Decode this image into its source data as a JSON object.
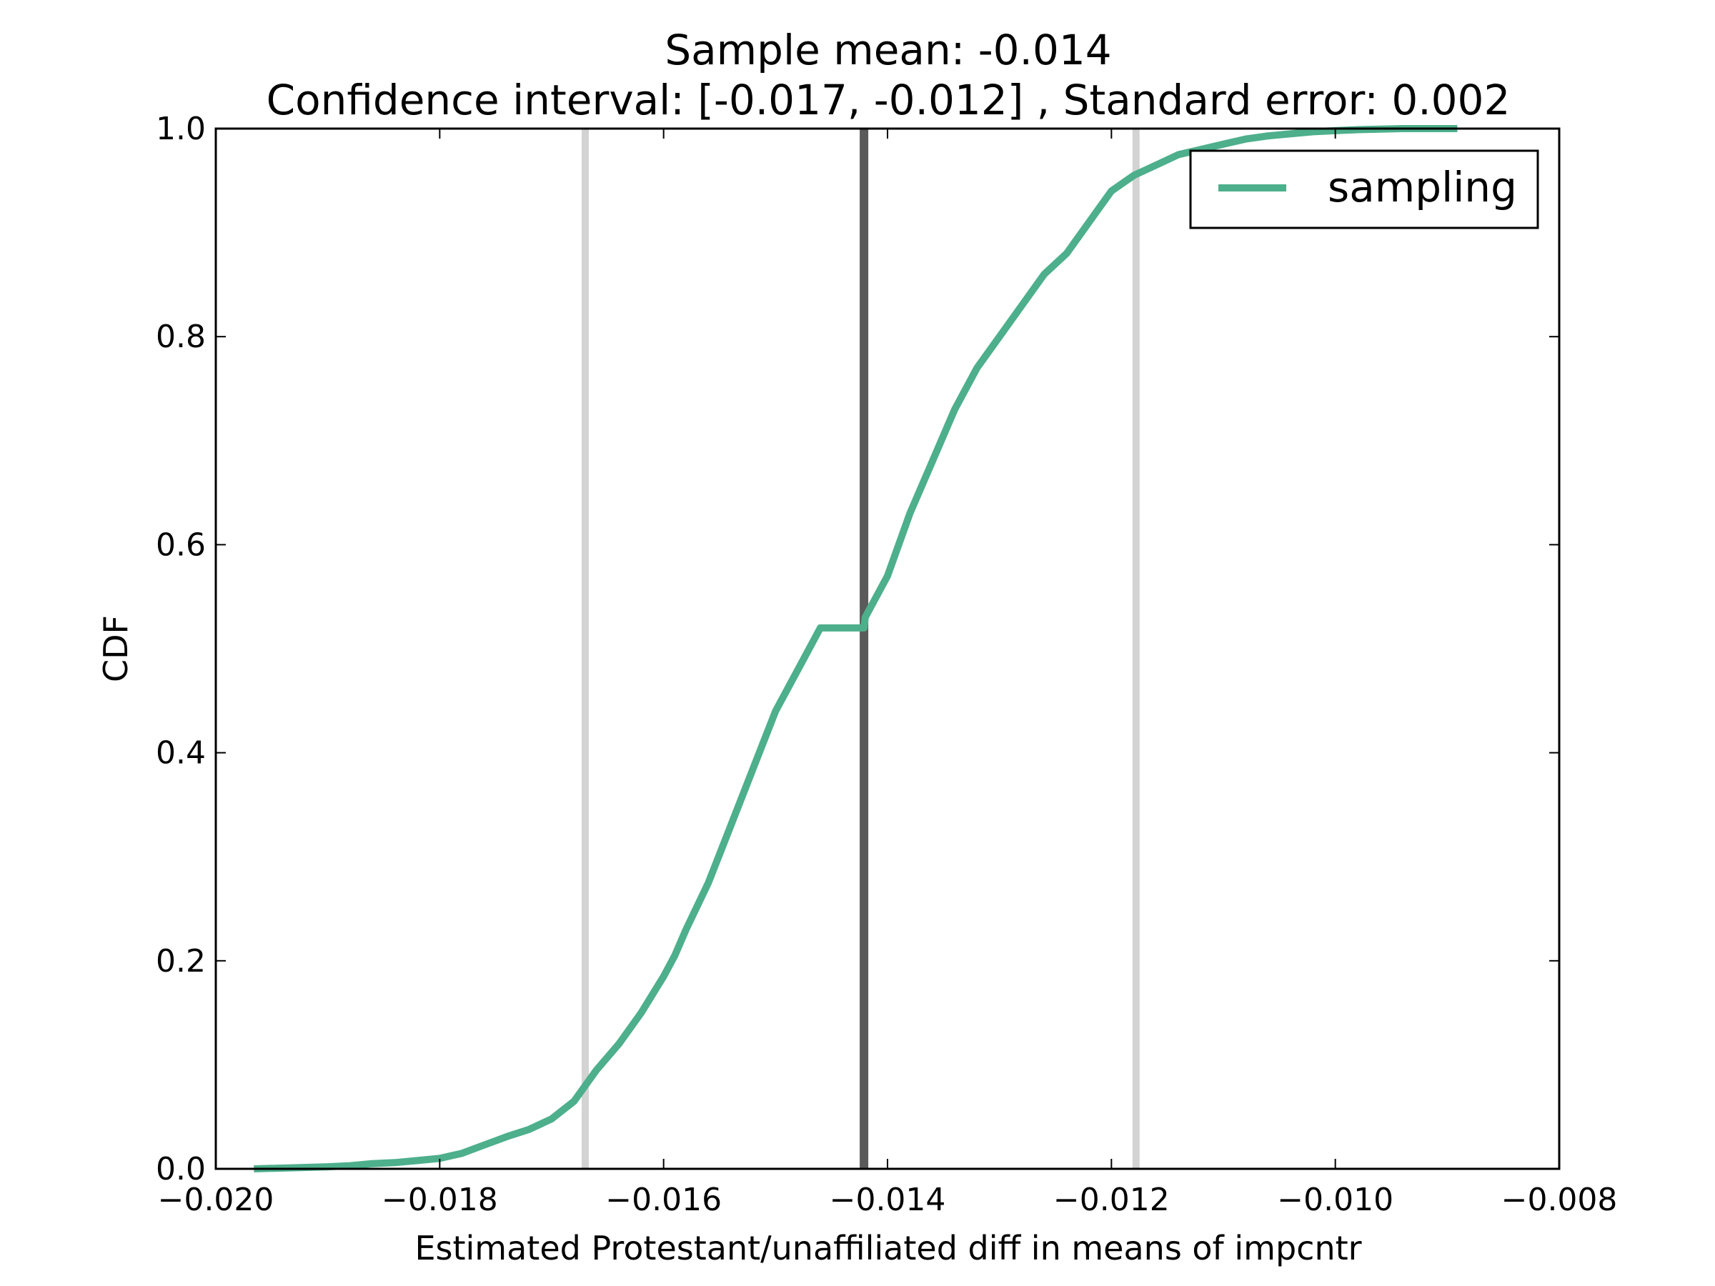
{
  "chart_data": {
    "type": "line",
    "title": "Sample mean: -0.014",
    "subtitle": "Confidence interval: [-0.017, -0.012] , Standard error: 0.002",
    "xlabel": "Estimated Protestant/unaffiliated diff in means of impcntr",
    "ylabel": "CDF",
    "xlim": [
      -0.02,
      -0.008
    ],
    "ylim": [
      0.0,
      1.0
    ],
    "x_ticks": [
      "−0.020",
      "−0.018",
      "−0.016",
      "−0.014",
      "−0.012",
      "−0.010",
      "−0.008"
    ],
    "x_tick_values": [
      -0.02,
      -0.018,
      -0.016,
      -0.014,
      -0.012,
      -0.01,
      -0.008
    ],
    "y_ticks": [
      "0.0",
      "0.2",
      "0.4",
      "0.6",
      "0.8",
      "1.0"
    ],
    "y_tick_values": [
      0.0,
      0.2,
      0.4,
      0.6,
      0.8,
      1.0
    ],
    "grid": false,
    "legend_position": "top-right",
    "vertical_lines": [
      {
        "role": "ci-lower",
        "x": -0.0167,
        "color": "#d3d3d3"
      },
      {
        "role": "mean",
        "x": -0.01421,
        "color": "#5a5a5a"
      },
      {
        "role": "ci-upper",
        "x": -0.01178,
        "color": "#d3d3d3"
      }
    ],
    "series": [
      {
        "name": "sampling",
        "color": "#4daf8c",
        "x": [
          -0.01966,
          -0.0193,
          -0.019,
          -0.0188,
          -0.0186,
          -0.0184,
          -0.0182,
          -0.018,
          -0.0178,
          -0.0176,
          -0.0174,
          -0.0172,
          -0.017,
          -0.0168,
          -0.0166,
          -0.0164,
          -0.0162,
          -0.016,
          -0.0159,
          -0.0158,
          -0.0156,
          -0.0154,
          -0.0152,
          -0.015,
          -0.0148,
          -0.0146,
          -0.0144,
          -0.01421,
          -0.0142,
          -0.014,
          -0.0138,
          -0.0136,
          -0.0134,
          -0.0132,
          -0.013,
          -0.0128,
          -0.0126,
          -0.0124,
          -0.0122,
          -0.012,
          -0.0118,
          -0.0116,
          -0.0114,
          -0.0112,
          -0.011,
          -0.0108,
          -0.0106,
          -0.0104,
          -0.0102,
          -0.01,
          -0.0098,
          -0.0096,
          -0.0094,
          -0.00891
        ],
        "values": [
          0.0,
          0.001,
          0.002,
          0.003,
          0.005,
          0.006,
          0.008,
          0.01,
          0.015,
          0.023,
          0.031,
          0.038,
          0.048,
          0.065,
          0.095,
          0.12,
          0.15,
          0.185,
          0.205,
          0.23,
          0.275,
          0.33,
          0.385,
          0.44,
          0.48,
          0.52,
          0.49,
          0.5,
          0.53,
          0.57,
          0.63,
          0.68,
          0.73,
          0.77,
          0.8,
          0.83,
          0.86,
          0.88,
          0.91,
          0.94,
          0.955,
          0.965,
          0.975,
          0.98,
          0.985,
          0.99,
          0.993,
          0.995,
          0.997,
          0.998,
          0.999,
          0.9995,
          1.0,
          1.0
        ]
      }
    ]
  }
}
